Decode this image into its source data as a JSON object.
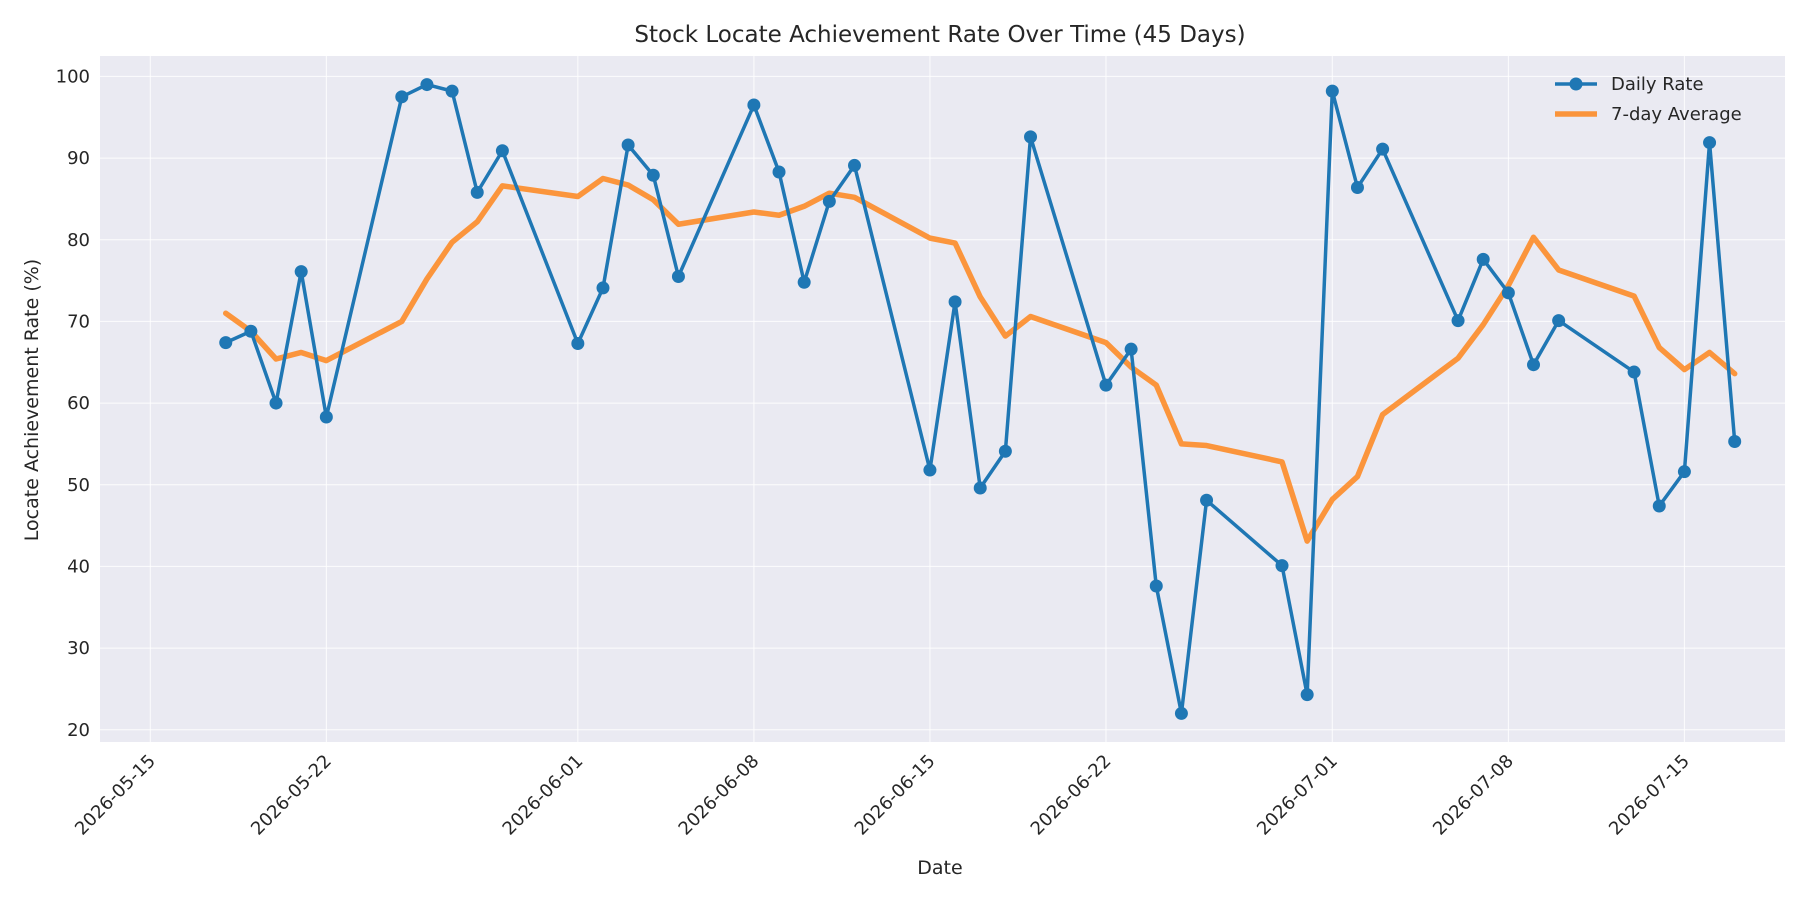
{
  "chart_data": {
    "type": "line",
    "title": "Stock Locate Achievement Rate Over Time (45 Days)",
    "xlabel": "Date",
    "ylabel": "Locate Achievement Rate (%)",
    "xlim": [
      "2026-05-13",
      "2026-07-19"
    ],
    "ylim": [
      18.5,
      102.5
    ],
    "grid": true,
    "legend": "top-right",
    "x_ticks": [
      "2026-05-15",
      "2026-05-22",
      "2026-06-01",
      "2026-06-08",
      "2026-06-15",
      "2026-06-22",
      "2026-07-01",
      "2026-07-08",
      "2026-07-15"
    ],
    "y_ticks": [
      20,
      30,
      40,
      50,
      60,
      70,
      80,
      90,
      100
    ],
    "x": [
      "2026-05-18",
      "2026-05-19",
      "2026-05-20",
      "2026-05-21",
      "2026-05-22",
      "2026-05-25",
      "2026-05-26",
      "2026-05-27",
      "2026-05-28",
      "2026-05-29",
      "2026-06-01",
      "2026-06-02",
      "2026-06-03",
      "2026-06-04",
      "2026-06-05",
      "2026-06-08",
      "2026-06-09",
      "2026-06-10",
      "2026-06-11",
      "2026-06-12",
      "2026-06-15",
      "2026-06-16",
      "2026-06-17",
      "2026-06-18",
      "2026-06-19",
      "2026-06-22",
      "2026-06-23",
      "2026-06-24",
      "2026-06-25",
      "2026-06-26",
      "2026-06-29",
      "2026-06-30",
      "2026-07-01",
      "2026-07-02",
      "2026-07-03",
      "2026-07-06",
      "2026-07-07",
      "2026-07-08",
      "2026-07-09",
      "2026-07-10",
      "2026-07-13",
      "2026-07-14",
      "2026-07-15",
      "2026-07-16",
      "2026-07-17"
    ],
    "series": [
      {
        "name": "Daily Rate",
        "color": "#1f77b4",
        "marker": "circle",
        "values": [
          67.4,
          68.8,
          60.0,
          76.1,
          58.3,
          97.5,
          99.0,
          98.2,
          85.8,
          90.9,
          67.3,
          74.1,
          91.6,
          87.9,
          75.5,
          96.5,
          88.3,
          74.8,
          84.7,
          89.1,
          51.8,
          72.4,
          49.6,
          54.1,
          92.6,
          62.2,
          66.6,
          37.6,
          22.0,
          48.1,
          40.1,
          24.3,
          98.2,
          86.4,
          91.1,
          70.1,
          77.6,
          73.5,
          64.7,
          70.1,
          63.8,
          47.4,
          51.6,
          91.9,
          55.3
        ]
      },
      {
        "name": "7-day Average",
        "color": "#ff7f0e",
        "marker": "none",
        "values": [
          71.0,
          68.8,
          65.4,
          66.2,
          65.2,
          70.0,
          75.2,
          79.7,
          82.2,
          86.6,
          85.3,
          87.5,
          86.7,
          84.9,
          81.9,
          83.4,
          83.0,
          84.1,
          85.7,
          85.2,
          80.2,
          79.6,
          73.0,
          68.2,
          70.6,
          67.4,
          64.4,
          62.2,
          55.0,
          54.8,
          52.8,
          43.1,
          48.2,
          51.0,
          58.6,
          65.5,
          69.6,
          74.4,
          80.3,
          76.3,
          73.1,
          66.8,
          64.1,
          66.2,
          63.6
        ]
      }
    ]
  }
}
